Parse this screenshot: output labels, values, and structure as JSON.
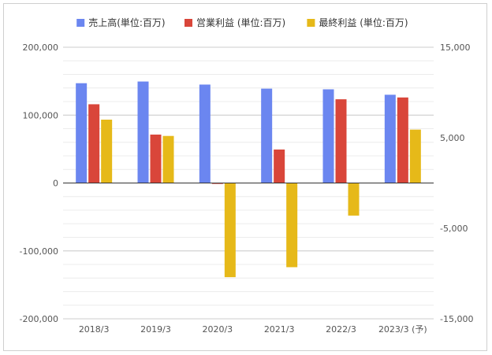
{
  "chart_data": {
    "type": "bar",
    "categories": [
      "2018/3",
      "2019/3",
      "2020/3",
      "2021/3",
      "2022/3",
      "2023/3 (予)"
    ],
    "series": [
      {
        "name": "売上高(単位:百万)",
        "axis": "left",
        "color": "#6b86f0",
        "values": [
          147000,
          149500,
          145000,
          139000,
          138000,
          130000
        ]
      },
      {
        "name": "営業利益 (単位:百万)",
        "axis": "right",
        "color": "#d9463a",
        "values": [
          8700,
          5350,
          -100,
          3700,
          9250,
          9450
        ]
      },
      {
        "name": "最終利益 (単位:百万)",
        "axis": "right",
        "color": "#e6b919",
        "values": [
          7000,
          5200,
          -10400,
          -9300,
          -3600,
          5900
        ]
      }
    ],
    "y_left": {
      "ylim": [
        -200000,
        200000
      ],
      "ticks": [
        200000,
        100000,
        0,
        -100000,
        -200000
      ],
      "tick_labels": [
        "200,000",
        "100,000",
        "0",
        "-100,000",
        "-200,000"
      ]
    },
    "y_right": {
      "ylim": [
        -15000,
        15000
      ],
      "ticks": [
        15000,
        5000,
        -5000,
        -15000
      ],
      "tick_labels": [
        "15,000",
        "5,000",
        "-5,000",
        "-15,000"
      ]
    },
    "grid": true,
    "legend": "top"
  }
}
